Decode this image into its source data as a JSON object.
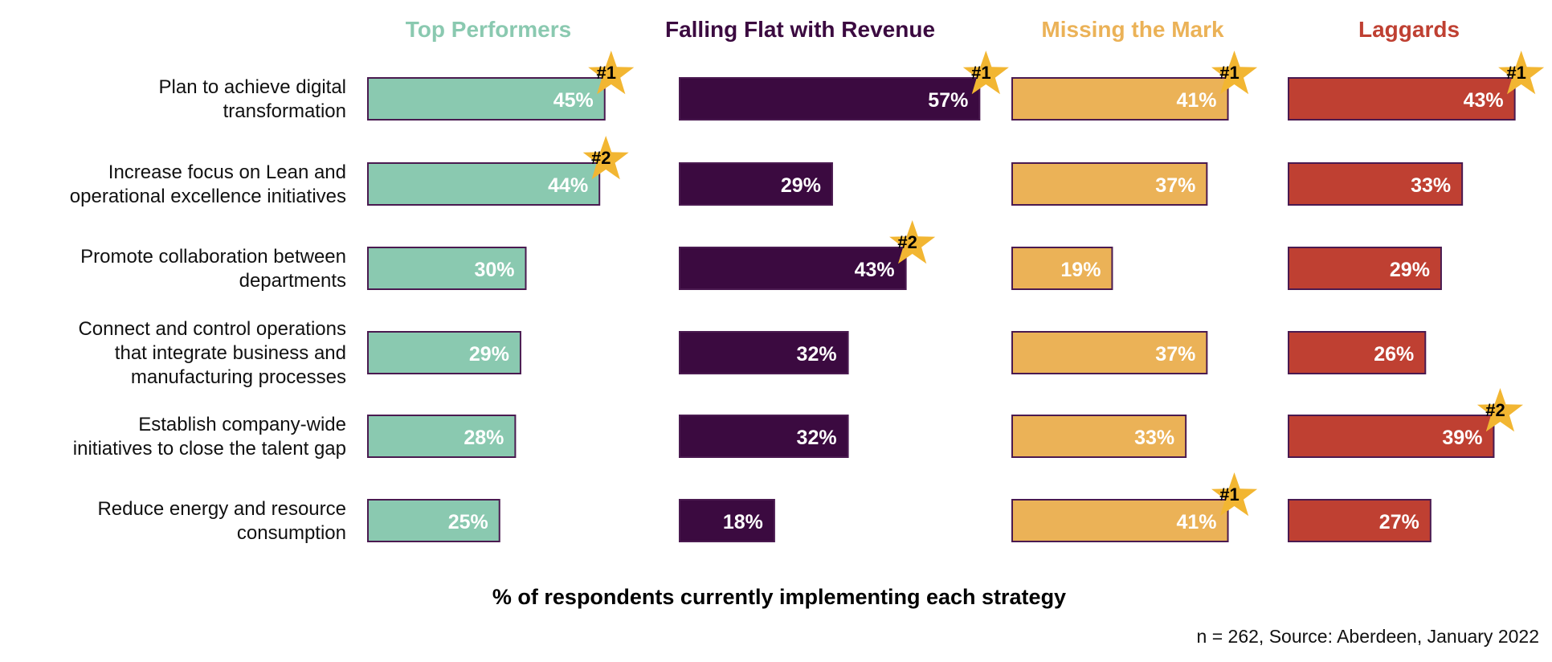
{
  "chart_data": {
    "type": "bar",
    "orientation": "horizontal",
    "categories": [
      "Plan to achieve digital transformation",
      "Increase focus on Lean and operational excellence initiatives",
      "Promote collaboration between departments",
      "Connect and control operations that integrate business and manufacturing processes",
      "Establish company-wide initiatives to close the talent gap",
      "Reduce energy and resource consumption"
    ],
    "category_lines": [
      [
        "Plan to achieve digital",
        "transformation"
      ],
      [
        "Increase focus on Lean and",
        "operational excellence initiatives"
      ],
      [
        "Promote collaboration between",
        "departments"
      ],
      [
        "Connect and control operations",
        "that integrate business and",
        "manufacturing processes"
      ],
      [
        "Establish company-wide",
        "initiatives to close the talent gap"
      ],
      [
        "Reduce energy and resource",
        "consumption"
      ]
    ],
    "series": [
      {
        "name": "Top Performers",
        "color": "#8ac9b0",
        "values": [
          45,
          44,
          30,
          29,
          28,
          25
        ],
        "labels": [
          "45%",
          "44%",
          "30%",
          "29%",
          "28%",
          "25%"
        ],
        "ranks": [
          "#1",
          "#2",
          "",
          "",
          "",
          ""
        ]
      },
      {
        "name": "Falling Flat with Revenue",
        "color": "#3b0a40",
        "values": [
          57,
          29,
          43,
          32,
          32,
          18
        ],
        "labels": [
          "57%",
          "29%",
          "43%",
          "32%",
          "32%",
          "18%"
        ],
        "ranks": [
          "#1",
          "",
          "#2",
          "",
          "",
          ""
        ]
      },
      {
        "name": "Missing the Mark",
        "color": "#ebb257",
        "values": [
          41,
          37,
          19,
          37,
          33,
          41
        ],
        "labels": [
          "41%",
          "37%",
          "19%",
          "37%",
          "33%",
          "41%"
        ],
        "ranks": [
          "#1",
          "",
          "",
          "",
          "",
          "#1"
        ]
      },
      {
        "name": "Laggards",
        "color": "#bf4032",
        "values": [
          43,
          33,
          29,
          26,
          39,
          27
        ],
        "labels": [
          "43%",
          "33%",
          "29%",
          "26%",
          "39%",
          "27%"
        ],
        "ranks": [
          "#1",
          "",
          "",
          "",
          "#2",
          ""
        ]
      }
    ],
    "xlabel": "% of respondents currently implementing each strategy",
    "unit": "%",
    "star_color": "#f2b632",
    "bar_border_color": "#4a1a50",
    "note": "n = 262, Source: Aberdeen, January 2022"
  }
}
